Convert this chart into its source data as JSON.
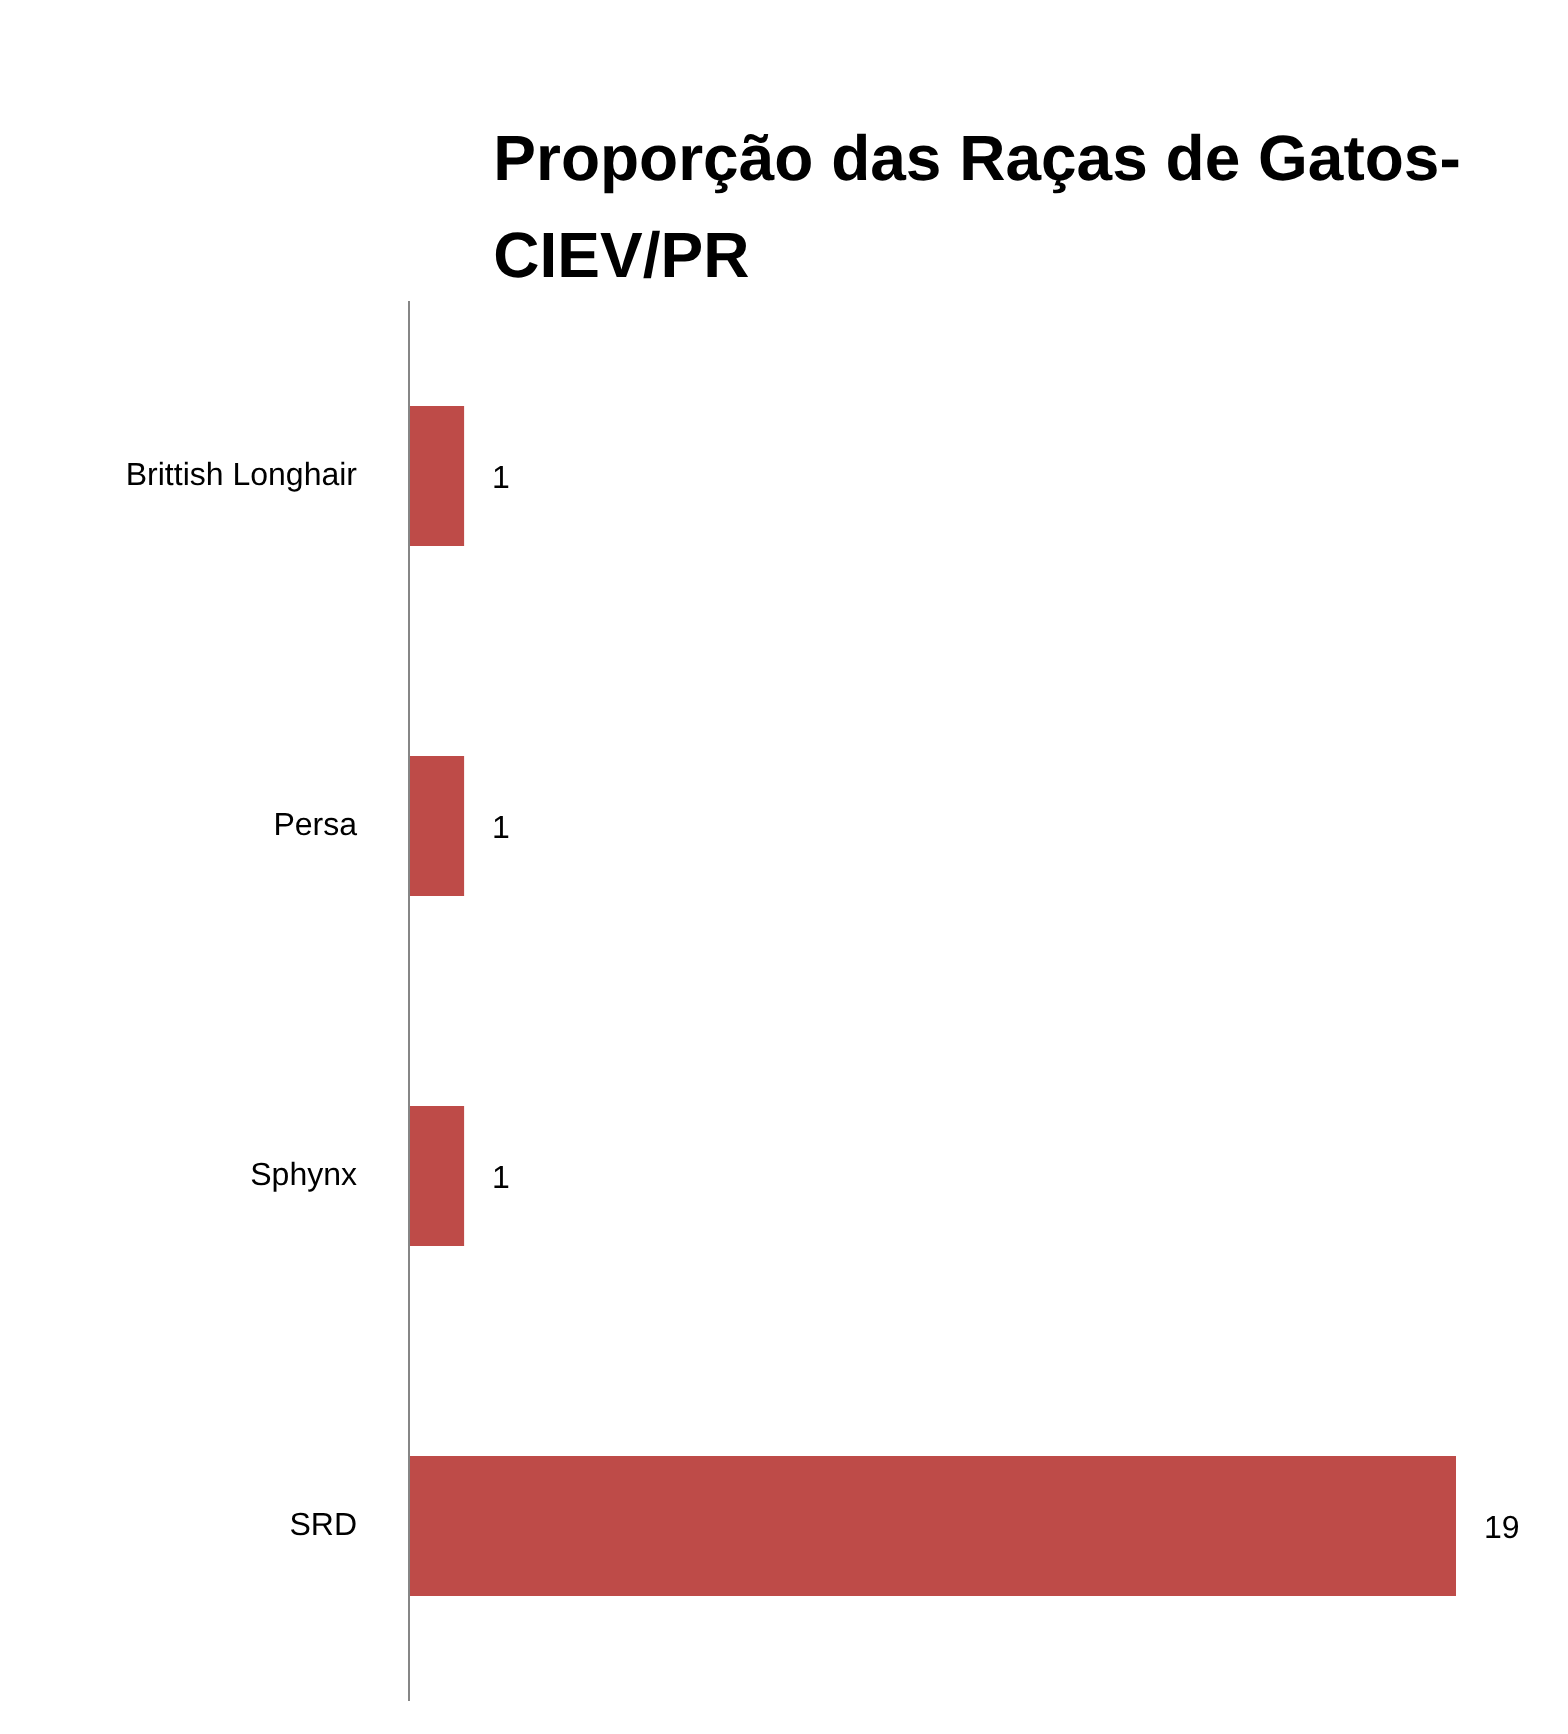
{
  "chart_data": {
    "type": "bar",
    "orientation": "horizontal",
    "title": "Proporção das Raças de Gatos-\nCIEV/PR",
    "categories": [
      "Brittish Longhair",
      "Persa",
      "Sphynx",
      "SRD"
    ],
    "values": [
      1,
      1,
      1,
      19
    ],
    "color": "#be4b48",
    "data_labels": true
  }
}
